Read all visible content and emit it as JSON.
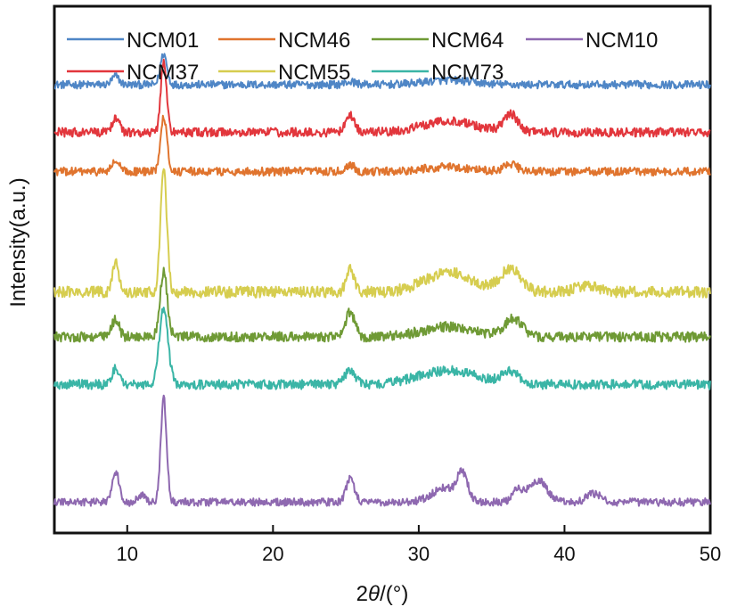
{
  "chart_data": {
    "type": "line",
    "title": "",
    "xlabel_prefix": "2",
    "xlabel_symbol": "θ",
    "xlabel_suffix": "/(°)",
    "ylabel": "Intensity(a.u.)",
    "xlim": [
      5,
      50
    ],
    "xticks": [
      10,
      20,
      30,
      40,
      50
    ],
    "yticks_shown": false,
    "legend": {
      "placement": "top",
      "columns": 4
    },
    "series": [
      {
        "name": "NCM01",
        "color": "#4f86c6",
        "offset": 7.45,
        "noise": 0.07,
        "peaks": [
          [
            9.2,
            0.15,
            0.25
          ],
          [
            12.5,
            0.55,
            0.22
          ],
          [
            25.3,
            0.05,
            0.4
          ],
          [
            32.0,
            0.08,
            1.6
          ]
        ]
      },
      {
        "name": "NCM46",
        "color": "#e0742e",
        "offset": 5.9,
        "noise": 0.075,
        "peaks": [
          [
            9.2,
            0.18,
            0.25
          ],
          [
            12.5,
            1.0,
            0.22
          ],
          [
            25.3,
            0.12,
            0.3
          ],
          [
            32.0,
            0.08,
            1.6
          ],
          [
            36.3,
            0.12,
            0.5
          ]
        ]
      },
      {
        "name": "NCM64",
        "color": "#6f9a35",
        "offset": 2.95,
        "noise": 0.09,
        "peaks": [
          [
            9.2,
            0.32,
            0.25
          ],
          [
            12.5,
            1.15,
            0.25
          ],
          [
            25.3,
            0.45,
            0.3
          ],
          [
            32.0,
            0.18,
            1.8
          ],
          [
            36.5,
            0.32,
            0.6
          ]
        ]
      },
      {
        "name": "NCM10",
        "color": "#8e68b0",
        "offset": 0.0,
        "noise": 0.07,
        "peaks": [
          [
            9.2,
            0.55,
            0.25
          ],
          [
            11.0,
            0.12,
            0.25
          ],
          [
            12.5,
            1.85,
            0.2
          ],
          [
            25.3,
            0.42,
            0.28
          ],
          [
            31.8,
            0.25,
            0.9
          ],
          [
            33.0,
            0.45,
            0.35
          ],
          [
            36.8,
            0.22,
            0.4
          ],
          [
            38.2,
            0.38,
            0.6
          ],
          [
            42.0,
            0.15,
            0.5
          ]
        ]
      },
      {
        "name": "NCM37",
        "color": "#e2363c",
        "offset": 6.6,
        "noise": 0.08,
        "peaks": [
          [
            9.2,
            0.25,
            0.25
          ],
          [
            12.5,
            1.25,
            0.2
          ],
          [
            25.3,
            0.3,
            0.3
          ],
          [
            32.0,
            0.2,
            1.8
          ],
          [
            36.3,
            0.32,
            0.5
          ]
        ]
      },
      {
        "name": "NCM55",
        "color": "#d6cd4f",
        "offset": 3.75,
        "noise": 0.1,
        "peaks": [
          [
            9.2,
            0.55,
            0.22
          ],
          [
            12.5,
            2.15,
            0.22
          ],
          [
            25.3,
            0.45,
            0.25
          ],
          [
            32.0,
            0.35,
            1.6
          ],
          [
            36.3,
            0.42,
            0.7
          ],
          [
            41.5,
            0.1,
            0.8
          ]
        ]
      },
      {
        "name": "NCM73",
        "color": "#3ab5a6",
        "offset": 2.1,
        "noise": 0.085,
        "peaks": [
          [
            9.2,
            0.3,
            0.25
          ],
          [
            12.5,
            1.35,
            0.3
          ],
          [
            25.3,
            0.25,
            0.35
          ],
          [
            32.0,
            0.25,
            2.0
          ],
          [
            36.3,
            0.22,
            0.6
          ]
        ]
      }
    ]
  }
}
